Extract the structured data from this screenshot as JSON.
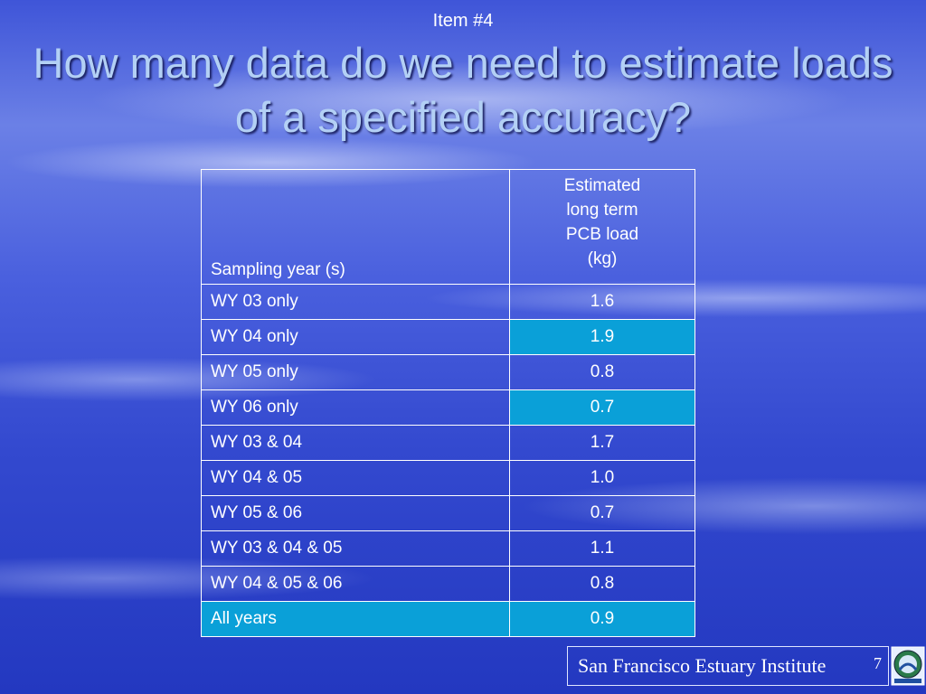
{
  "header": {
    "item": "Item #4",
    "title": "How many data do we need to estimate loads of a specified accuracy?"
  },
  "table": {
    "columns": [
      "Sampling year (s)",
      "Estimated long term PCB load (kg)"
    ],
    "rows": [
      [
        "WY 03 only",
        "1.6"
      ],
      [
        "WY 04 only",
        "1.9"
      ],
      [
        "WY 05 only",
        "0.8"
      ],
      [
        "WY 06 only",
        "0.7"
      ],
      [
        "WY 03 & 04",
        "1.7"
      ],
      [
        "WY 04 & 05",
        "1.0"
      ],
      [
        "WY 05 & 06",
        "0.7"
      ],
      [
        "WY 03 & 04 & 05",
        "1.1"
      ],
      [
        "WY 04 & 05 & 06",
        "0.8"
      ],
      [
        "All years",
        "0.9"
      ]
    ]
  },
  "footer": {
    "institute": "San Francisco Estuary Institute",
    "page": "7"
  }
}
